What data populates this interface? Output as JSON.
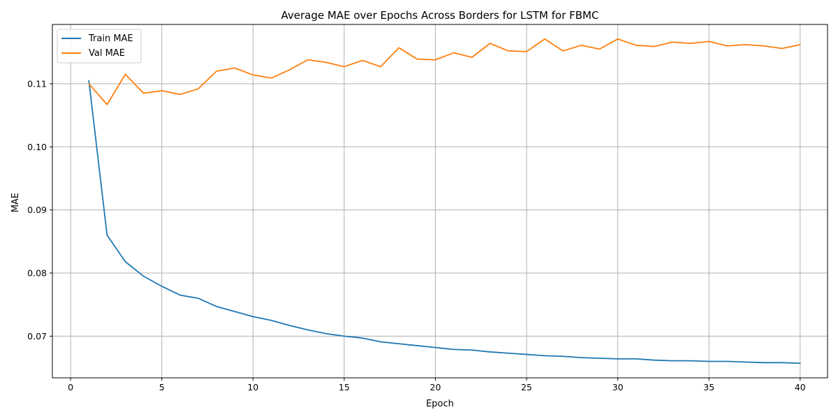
{
  "chart_data": {
    "type": "line",
    "title": "Average MAE over Epochs Across Borders for LSTM for FBMC",
    "xlabel": "Epoch",
    "ylabel": "MAE",
    "xlim": [
      -1,
      41.5
    ],
    "ylim": [
      0.0634,
      0.1194
    ],
    "xticks": [
      0,
      5,
      10,
      15,
      20,
      25,
      30,
      35,
      40
    ],
    "yticks": [
      0.07,
      0.08,
      0.09,
      0.1,
      0.11
    ],
    "ytick_labels": [
      "0.07",
      "0.08",
      "0.09",
      "0.10",
      "0.11"
    ],
    "grid": true,
    "legend_position": "top-left",
    "x": [
      1,
      2,
      3,
      4,
      5,
      6,
      7,
      8,
      9,
      10,
      11,
      12,
      13,
      14,
      15,
      16,
      17,
      18,
      19,
      20,
      21,
      22,
      23,
      24,
      25,
      26,
      27,
      28,
      29,
      30,
      31,
      32,
      33,
      34,
      35,
      36,
      37,
      38,
      39,
      40
    ],
    "series": [
      {
        "name": "Train MAE",
        "color": "#1f77b4",
        "values": [
          0.1105,
          0.086,
          0.0818,
          0.0795,
          0.0779,
          0.0765,
          0.076,
          0.0747,
          0.0739,
          0.0731,
          0.0725,
          0.0717,
          0.071,
          0.0704,
          0.07,
          0.0697,
          0.0691,
          0.0688,
          0.0685,
          0.0682,
          0.0679,
          0.0678,
          0.0675,
          0.0673,
          0.0671,
          0.0669,
          0.0668,
          0.0666,
          0.0665,
          0.0664,
          0.0664,
          0.0662,
          0.0661,
          0.0661,
          0.066,
          0.066,
          0.0659,
          0.0658,
          0.0658,
          0.0657
        ]
      },
      {
        "name": "Val MAE",
        "color": "#ff7f0e",
        "values": [
          0.11,
          0.1067,
          0.1115,
          0.1085,
          0.1089,
          0.1083,
          0.1092,
          0.112,
          0.1125,
          0.1114,
          0.1109,
          0.1122,
          0.1138,
          0.1134,
          0.1127,
          0.1137,
          0.1127,
          0.1157,
          0.1139,
          0.1138,
          0.1149,
          0.1142,
          0.1164,
          0.1152,
          0.1151,
          0.1171,
          0.1152,
          0.1161,
          0.1155,
          0.1171,
          0.1161,
          0.1159,
          0.1166,
          0.1164,
          0.1167,
          0.116,
          0.1162,
          0.116,
          0.1156,
          0.1162
        ]
      }
    ]
  }
}
